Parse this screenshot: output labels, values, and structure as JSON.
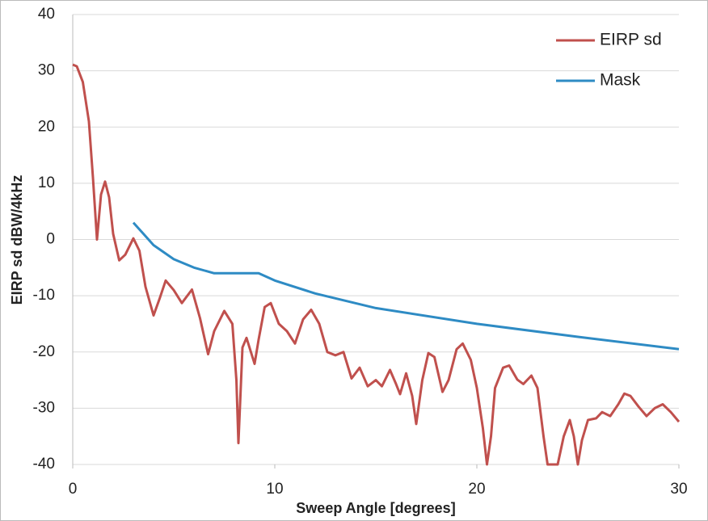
{
  "chart_data": {
    "type": "line",
    "xlabel": "Sweep Angle [degrees]",
    "ylabel": "EIRP sd dBW/4kHz",
    "xlim": [
      0,
      30
    ],
    "xticks": [
      0,
      10,
      20,
      30
    ],
    "ylim": [
      -40,
      40
    ],
    "yticks": [
      -40,
      -30,
      -20,
      -10,
      0,
      10,
      20,
      30,
      40
    ],
    "grid": true,
    "legend": "upper right",
    "series": [
      {
        "name": "EIRP sd",
        "color": "#c0504d",
        "x": [
          0,
          0.2,
          0.5,
          0.8,
          1.0,
          1.2,
          1.4,
          1.6,
          1.8,
          2.0,
          2.3,
          2.6,
          3.0,
          3.3,
          3.6,
          4.0,
          4.3,
          4.6,
          5.0,
          5.4,
          5.9,
          6.3,
          6.7,
          7.0,
          7.5,
          7.9,
          8.1,
          8.2,
          8.4,
          8.6,
          9.0,
          9.2,
          9.5,
          9.8,
          10.2,
          10.6,
          11.0,
          11.4,
          11.8,
          12.2,
          12.6,
          13.0,
          13.4,
          13.8,
          14.2,
          14.6,
          15.0,
          15.3,
          15.7,
          16.0,
          16.2,
          16.5,
          16.8,
          17.0,
          17.3,
          17.6,
          17.9,
          18.3,
          18.6,
          19.0,
          19.3,
          19.7,
          20.0,
          20.3,
          20.5,
          20.7,
          20.9,
          21.3,
          21.6,
          22.0,
          22.3,
          22.7,
          23.0,
          23.3,
          23.5,
          24.0,
          24.3,
          24.6,
          24.8,
          25.0,
          25.2,
          25.5,
          25.9,
          26.2,
          26.6,
          27.0,
          27.3,
          27.6,
          28.0,
          28.4,
          28.8,
          29.2,
          29.6,
          30
        ],
        "values": [
          31.1,
          30.8,
          28,
          21,
          11,
          0,
          8,
          10.3,
          7.5,
          1,
          -3.7,
          -2.7,
          0.2,
          -2,
          -8.4,
          -13.5,
          -10.5,
          -7.3,
          -9,
          -11.3,
          -8.9,
          -14,
          -20.4,
          -16.3,
          -12.7,
          -15,
          -25,
          -36.2,
          -19.2,
          -17.5,
          -22.1,
          -17.8,
          -12,
          -11.3,
          -15,
          -16.3,
          -18.5,
          -14.2,
          -12.5,
          -15,
          -20,
          -20.6,
          -20,
          -24.7,
          -22.8,
          -26.1,
          -25,
          -26.1,
          -23.2,
          -25.7,
          -27.5,
          -23.8,
          -27.8,
          -32.8,
          -25,
          -20.2,
          -20.9,
          -27.1,
          -25,
          -19.5,
          -18.5,
          -21.4,
          -26.4,
          -33.6,
          -40,
          -35,
          -26.4,
          -22.8,
          -22.4,
          -24.9,
          -25.7,
          -24.2,
          -26.4,
          -35,
          -40,
          -40,
          -35,
          -32.1,
          -35,
          -40,
          -35.7,
          -32.1,
          -31.8,
          -30.7,
          -31.4,
          -29.3,
          -27.4,
          -27.8,
          -29.7,
          -31.4,
          -30,
          -29.3,
          -30.7,
          -32.4
        ]
      },
      {
        "name": "Mask",
        "color": "#2e8bc4",
        "x": [
          3,
          3.5,
          4,
          5,
          6,
          7,
          9.2,
          10,
          12,
          15,
          20,
          25,
          30
        ],
        "values": [
          3,
          1,
          -1,
          -3.5,
          -5,
          -6,
          -6,
          -7.3,
          -9.6,
          -12.2,
          -15,
          -17.3,
          -19.5
        ]
      }
    ]
  }
}
